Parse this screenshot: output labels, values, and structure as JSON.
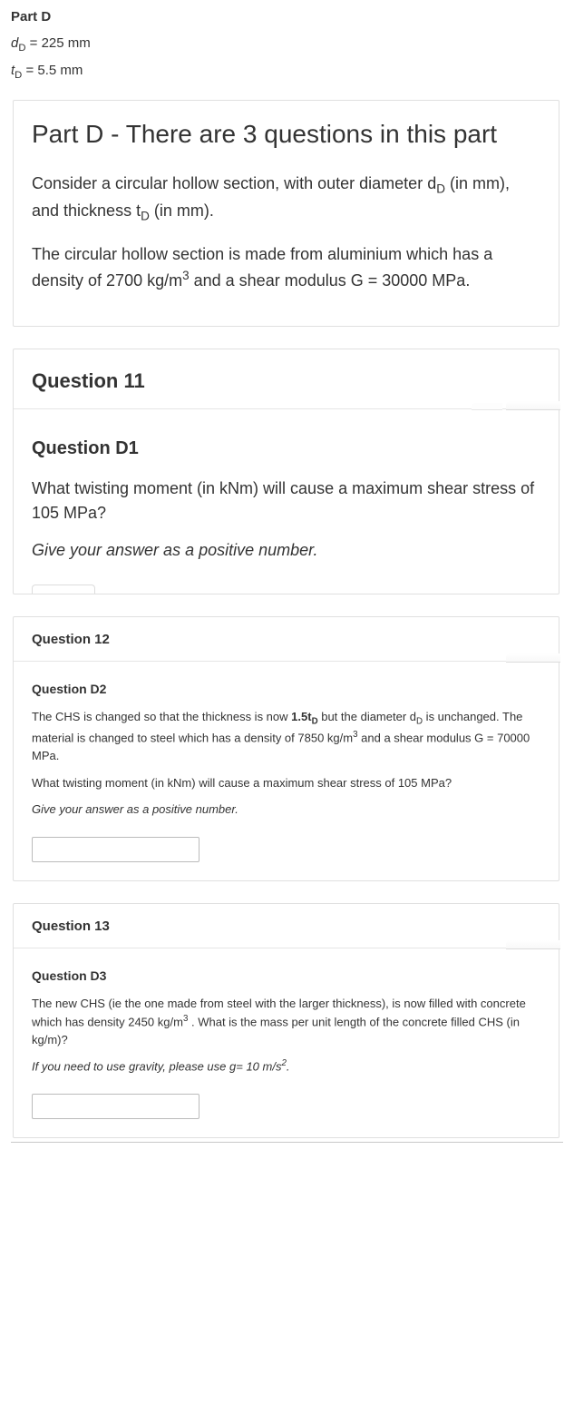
{
  "top": {
    "title": "Part D",
    "line1_pre": "d",
    "line1_sub": "D",
    "line1_post": " = 225 mm",
    "line2_pre": "t",
    "line2_sub": "D",
    "line2_post": " = 5.5 mm"
  },
  "intro": {
    "heading": "Part D - There are 3 questions in this part",
    "p1_a": "Consider a circular hollow section, with outer diameter d",
    "p1_sub1": "D",
    "p1_b": " (in mm), and thickness t",
    "p1_sub2": "D",
    "p1_c": " (in mm).",
    "p2_a": "The circular hollow section is made from aluminium which has a density of 2700 kg/m",
    "p2_sup": "3",
    "p2_b": " and a shear modulus G = 30000 MPa."
  },
  "q11": {
    "header": "Question 11",
    "sub": "Question D1",
    "p1": "What twisting moment (in kNm) will cause a maximum shear stress of 105 MPa?",
    "hint": "Give your answer as a positive number."
  },
  "q12": {
    "header": "Question 12",
    "sub": "Question D2",
    "p1_a": "The CHS is changed so that the thickness is now ",
    "p1_bold": "1.5t",
    "p1_boldsub": "D",
    "p1_b": " but the diameter d",
    "p1_sub2": "D",
    "p1_c": " is unchanged.  The material is changed to steel which has a density of 7850 kg/m",
    "p1_sup": "3",
    "p1_d": " and a shear modulus G = 70000 MPa.",
    "p2": "What twisting moment (in kNm) will cause a maximum shear stress of 105 MPa?",
    "hint": "Give your answer as a positive number.",
    "answer": ""
  },
  "q13": {
    "header": "Question 13",
    "sub": "Question D3",
    "p1_a": "The new CHS (ie the one made from steel with the larger thickness), is now filled with concrete which has density 2450 kg/m",
    "p1_sup": "3",
    "p1_b": " .  What is the mass per unit length of the concrete filled CHS (in kg/m)?",
    "hint_a": "If you need to use gravity, please use g= 10 m/s",
    "hint_sup": "2",
    "hint_b": ".",
    "answer": ""
  }
}
